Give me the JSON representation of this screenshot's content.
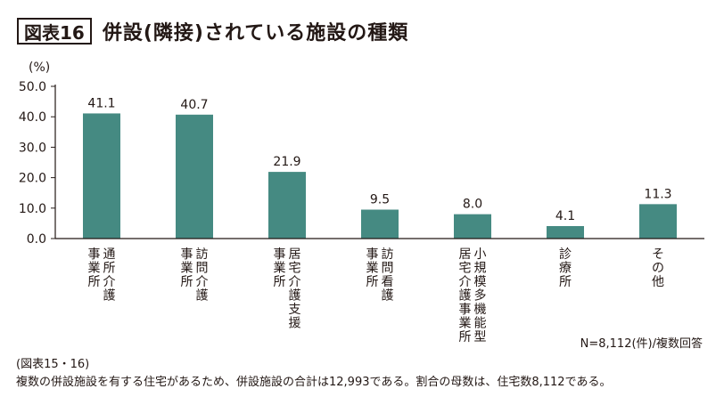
{
  "header": {
    "fig_label": "図表16",
    "title": "併設(隣接)されている施設の種類"
  },
  "colors": {
    "bar": "#458a82",
    "axis": "#231815"
  },
  "chart_data": {
    "type": "bar",
    "title": "併設(隣接)されている施設の種類",
    "ylabel": "(%)",
    "xlabel": "",
    "ylim": [
      0,
      50
    ],
    "yticks": [
      "50.0",
      "40.0",
      "30.0",
      "20.0",
      "10.0",
      "0.0"
    ],
    "categories": [
      [
        "通所介護",
        "事業所"
      ],
      [
        "訪問介護",
        "事業所"
      ],
      [
        "居宅介護支援",
        "事業所"
      ],
      [
        "訪問看護",
        "事業所"
      ],
      [
        "小規模多機能型",
        "居宅介護事業所"
      ],
      [
        "診療所"
      ],
      [
        "その他"
      ]
    ],
    "values": [
      41.1,
      40.7,
      21.9,
      9.5,
      8.0,
      4.1,
      11.3
    ],
    "value_labels": [
      "41.1",
      "40.7",
      "21.9",
      "9.5",
      "8.0",
      "4.1",
      "11.3"
    ],
    "note": "N=8,112(件)/複数回答"
  },
  "footer": {
    "source": "(図表15・16)",
    "note": "複数の併設施設を有する住宅があるため、併設施設の合計は12,993である。割合の母数は、住宅数8,112である。"
  }
}
